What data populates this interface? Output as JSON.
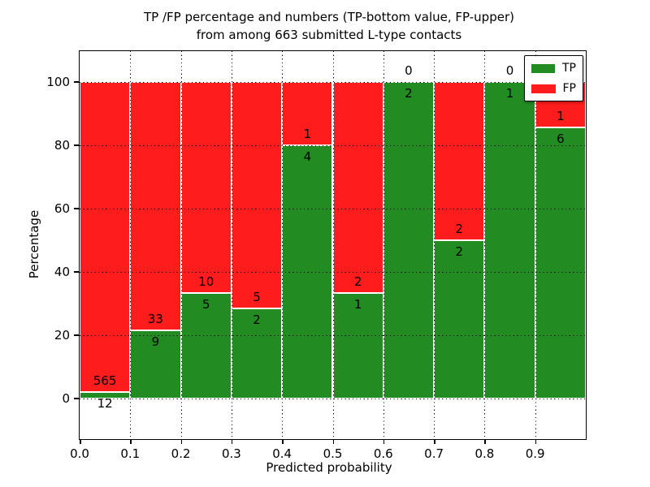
{
  "figure": {
    "title_line1": "TP /FP percentage and numbers (TP-bottom value, FP-upper)",
    "title_line2": "from among 663 submitted L-type contacts",
    "xlabel": "Predicted probability",
    "ylabel": "Percentage"
  },
  "chart_data": {
    "type": "bar",
    "stacked": true,
    "normalized": "each bar scaled to 100%, split = TP/(TP+FP)",
    "title": "TP /FP percentage and numbers (TP-bottom value, FP-upper) from among 663 submitted L-type contacts",
    "xlabel": "Predicted probability",
    "ylabel": "Percentage",
    "total_contacts": 663,
    "bin_width": 0.1,
    "categories": [
      "0.0-0.1",
      "0.1-0.2",
      "0.2-0.3",
      "0.3-0.4",
      "0.4-0.5",
      "0.5-0.6",
      "0.6-0.7",
      "0.7-0.8",
      "0.8-0.9",
      "0.9-1.0"
    ],
    "series": [
      {
        "name": "TP",
        "color": "#228b22",
        "counts": [
          12,
          9,
          5,
          2,
          4,
          1,
          2,
          2,
          1,
          6
        ]
      },
      {
        "name": "FP",
        "color": "#ff1c1c",
        "counts": [
          565,
          33,
          10,
          5,
          1,
          2,
          0,
          2,
          0,
          1
        ]
      }
    ],
    "tp_percent": [
      2.08,
      21.43,
      33.33,
      28.57,
      80.0,
      33.33,
      100.0,
      50.0,
      100.0,
      85.71
    ],
    "x_ticks": [
      "0.0",
      "0.1",
      "0.2",
      "0.3",
      "0.4",
      "0.5",
      "0.6",
      "0.7",
      "0.8",
      "0.9"
    ],
    "y_ticks": [
      0,
      20,
      40,
      60,
      80,
      100
    ],
    "xlim": [
      0.0,
      1.0
    ],
    "ylim": [
      -12.8,
      109.7
    ],
    "grid": "dotted, both axes, drawn above bars",
    "bar_edge_color": "#ffffff",
    "legend": {
      "position": "upper-right",
      "entries": [
        "TP",
        "FP"
      ]
    }
  }
}
